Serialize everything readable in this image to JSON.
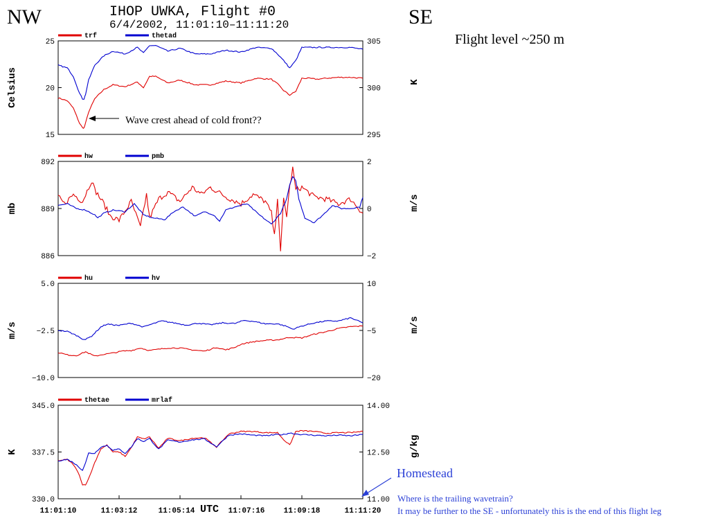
{
  "header": {
    "left_label": "NW",
    "right_label": "SE",
    "title_line1": "IHOP UWKA, Flight #0",
    "title_line2": "6/4/2002, 11:01:10–11:11:20",
    "flight_level": "Flight level ~250 m"
  },
  "annotations": {
    "wave_crest": "Wave crest ahead of cold front??",
    "homestead": "Homestead",
    "trailing_q": "Where is the trailing wavetrain?",
    "trailing_note": "It may be further to the SE - unfortunately this is the end of this flight leg"
  },
  "colors": {
    "red": "#e00000",
    "blue": "#0000d0",
    "note": "#2a3fd6"
  },
  "chart_data": [
    {
      "type": "line",
      "ylabel_left": "Celsius",
      "ylabel_right": "K",
      "left_ticks": [
        "25",
        "20",
        "15"
      ],
      "right_ticks": [
        "305",
        "300",
        "295"
      ],
      "ylim_left": [
        15,
        25
      ],
      "ylim_right": [
        295,
        305
      ],
      "series": [
        {
          "name": "trf",
          "color": "#e00000",
          "axis": "left",
          "x": [
            0,
            3,
            5,
            6,
            7,
            8,
            8.5,
            9,
            10,
            12,
            15,
            18,
            22,
            26,
            28,
            30,
            32,
            36,
            40,
            45,
            50,
            55,
            60,
            65,
            70,
            72,
            74,
            76,
            78,
            80,
            82,
            85,
            88,
            92,
            96,
            100
          ],
          "y": [
            18.9,
            18.6,
            17.8,
            17,
            16.2,
            15.7,
            15.7,
            16.2,
            17.4,
            18.8,
            19.8,
            20.3,
            20.1,
            20.6,
            20.0,
            21.2,
            21.2,
            20.5,
            20.8,
            20.3,
            20.3,
            20.7,
            20.5,
            21.0,
            20.9,
            20.4,
            19.7,
            19.2,
            19.6,
            21.0,
            21.0,
            20.9,
            21.0,
            21.1,
            21.1,
            21.0
          ]
        },
        {
          "name": "thetad",
          "color": "#0000d0",
          "axis": "right",
          "x": [
            0,
            3,
            5,
            6,
            7,
            8,
            8.5,
            9,
            10,
            12,
            15,
            18,
            22,
            26,
            28,
            30,
            32,
            36,
            40,
            45,
            50,
            55,
            60,
            65,
            70,
            72,
            74,
            76,
            78,
            80,
            82,
            85,
            88,
            92,
            96,
            100
          ],
          "y": [
            302.4,
            302.1,
            301.2,
            300.3,
            299.4,
            298.8,
            298.8,
            299.3,
            300.8,
            302.4,
            303.4,
            303.9,
            303.6,
            304.3,
            303.7,
            304.5,
            304.5,
            303.9,
            304.2,
            303.6,
            303.6,
            304.0,
            303.8,
            304.3,
            304.2,
            303.6,
            302.9,
            302.1,
            302.9,
            304.3,
            304.3,
            304.3,
            304.3,
            304.3,
            304.3,
            304.1
          ]
        }
      ]
    },
    {
      "type": "line",
      "ylabel_left": "mb",
      "ylabel_right": "m/s",
      "left_ticks": [
        "892",
        "889",
        "886"
      ],
      "right_ticks": [
        "2",
        "0",
        "−2"
      ],
      "ylim_left": [
        886,
        892
      ],
      "ylim_right": [
        -2,
        2
      ],
      "series": [
        {
          "name": "hw",
          "color": "#e00000",
          "axis": "right",
          "x": [
            0,
            2,
            5,
            8,
            11,
            12,
            15,
            17,
            20,
            24,
            27,
            29,
            30,
            33,
            36,
            40,
            44,
            47,
            50,
            55,
            60,
            64,
            68,
            70,
            71,
            72,
            73,
            74,
            75,
            76,
            77,
            78,
            80,
            84,
            88,
            92,
            96,
            100
          ],
          "y": [
            0.5,
            0.2,
            0.6,
            0.3,
            1.2,
            0.8,
            0.2,
            -0.3,
            -0.5,
            0.3,
            -0.8,
            0.6,
            -0.4,
            0.4,
            0.7,
            0.3,
            0.9,
            0.6,
            0.9,
            0.5,
            0.2,
            0.6,
            0.3,
            -0.2,
            -1.2,
            0.5,
            -1.9,
            0.4,
            -0.3,
            0.9,
            1.7,
            0.8,
            0.9,
            0.5,
            0.4,
            0.2,
            0.4,
            -0.2
          ]
        },
        {
          "name": "pmb",
          "color": "#0000d0",
          "axis": "left",
          "x": [
            0,
            3,
            6,
            9,
            12,
            13,
            15,
            18,
            22,
            25,
            28,
            31,
            35,
            38,
            41,
            45,
            48,
            51,
            53,
            55,
            58,
            62,
            66,
            70,
            73,
            75,
            76,
            77,
            78,
            79,
            81,
            84,
            87,
            90,
            93,
            96,
            99,
            100
          ],
          "y": [
            889.2,
            889.3,
            889.0,
            888.9,
            888.6,
            888.4,
            888.7,
            888.9,
            888.8,
            889.3,
            888.6,
            888.4,
            888.3,
            888.8,
            889.1,
            888.5,
            888.8,
            888.6,
            888.2,
            888.9,
            889.1,
            889.3,
            888.6,
            888.0,
            888.7,
            889.6,
            890.5,
            891.0,
            890.8,
            889.6,
            888.4,
            888.1,
            888.6,
            889.2,
            889.0,
            889.0,
            889.1,
            889.7
          ]
        }
      ]
    },
    {
      "type": "line",
      "ylabel_left": "m/s",
      "ylabel_right": "m/s",
      "left_ticks": [
        "5.0",
        "−2.5",
        "−10.0"
      ],
      "right_ticks": [
        "10",
        "−5",
        "−20"
      ],
      "ylim_left": [
        -10,
        5
      ],
      "ylim_right": [
        -20,
        10
      ],
      "series": [
        {
          "name": "hu",
          "color": "#e00000",
          "axis": "left",
          "x": [
            0,
            3,
            6,
            9,
            12,
            15,
            18,
            21,
            24,
            27,
            30,
            33,
            36,
            40,
            44,
            48,
            52,
            55,
            58,
            60,
            64,
            68,
            72,
            76,
            80,
            84,
            88,
            92,
            96,
            100
          ],
          "y": [
            -6.0,
            -6.4,
            -6.5,
            -5.9,
            -6.6,
            -6.3,
            -6.1,
            -5.8,
            -5.7,
            -5.3,
            -5.7,
            -5.5,
            -5.3,
            -5.3,
            -5.6,
            -5.8,
            -5.2,
            -5.6,
            -5.2,
            -4.7,
            -4.3,
            -4.1,
            -4.0,
            -3.6,
            -3.7,
            -3.1,
            -2.7,
            -2.2,
            -1.9,
            -1.8
          ]
        },
        {
          "name": "hv",
          "color": "#0000d0",
          "axis": "right",
          "x": [
            0,
            3,
            6,
            8,
            9,
            11,
            14,
            16,
            20,
            24,
            28,
            31,
            34,
            38,
            42,
            46,
            50,
            54,
            58,
            61,
            64,
            68,
            72,
            75,
            77,
            80,
            84,
            88,
            92,
            96,
            99,
            100
          ],
          "y": [
            -5.0,
            -5.3,
            -6.6,
            -7.7,
            -7.9,
            -6.8,
            -3.9,
            -3.0,
            -3.4,
            -2.7,
            -3.9,
            -2.9,
            -2.0,
            -2.6,
            -3.3,
            -2.7,
            -3.2,
            -2.6,
            -2.8,
            -1.8,
            -2.1,
            -2.9,
            -2.9,
            -3.7,
            -4.6,
            -3.6,
            -2.6,
            -2.0,
            -2.0,
            -1.0,
            -2.2,
            -2.6
          ]
        }
      ]
    },
    {
      "type": "line",
      "ylabel_left": "K",
      "ylabel_right": "g/kg",
      "left_ticks": [
        "345.0",
        "337.5",
        "330.0"
      ],
      "right_ticks": [
        "14.00",
        "12.50",
        "11.00"
      ],
      "ylim_left": [
        330,
        345
      ],
      "ylim_right": [
        11,
        14
      ],
      "series": [
        {
          "name": "thetae",
          "color": "#e00000",
          "axis": "left",
          "x": [
            0,
            3,
            5,
            7,
            8,
            9,
            10,
            12,
            14,
            16,
            18,
            20,
            22,
            24,
            26,
            28,
            30,
            33,
            36,
            40,
            44,
            48,
            52,
            56,
            60,
            64,
            68,
            72,
            74,
            76,
            78,
            80,
            84,
            88,
            92,
            96,
            100
          ],
          "y": [
            336.1,
            336.3,
            335.5,
            333.8,
            332.2,
            332.3,
            333.2,
            335.8,
            338.0,
            338.6,
            337.5,
            337.5,
            336.8,
            338.2,
            339.9,
            339.6,
            339.9,
            338.1,
            339.7,
            339.3,
            339.7,
            339.8,
            338.3,
            340.4,
            340.8,
            340.8,
            340.6,
            340.6,
            339.5,
            338.6,
            340.8,
            340.9,
            340.8,
            340.5,
            340.6,
            340.6,
            340.8
          ]
        },
        {
          "name": "mrlaf",
          "color": "#0000d0",
          "axis": "right",
          "x": [
            0,
            3,
            5,
            7,
            8,
            9,
            10,
            12,
            14,
            16,
            18,
            20,
            22,
            24,
            26,
            28,
            30,
            33,
            36,
            40,
            44,
            48,
            52,
            56,
            60,
            64,
            68,
            72,
            74,
            76,
            78,
            80,
            84,
            88,
            92,
            96,
            100
          ],
          "y": [
            12.22,
            12.26,
            12.16,
            12.0,
            11.92,
            12.16,
            12.46,
            12.46,
            12.66,
            12.71,
            12.56,
            12.59,
            12.46,
            12.66,
            12.93,
            12.84,
            12.93,
            12.59,
            12.88,
            12.82,
            12.89,
            12.92,
            12.67,
            13.04,
            13.08,
            13.04,
            13.02,
            13.06,
            13.06,
            13.11,
            13.08,
            13.06,
            13.04,
            13.02,
            13.04,
            13.02,
            13.06
          ]
        }
      ]
    }
  ],
  "x_axis": {
    "label": "UTC",
    "ticks": [
      "11:01:10",
      "11:03:12",
      "11:05:14",
      "11:07:16",
      "11:09:18",
      "11:11:20"
    ]
  }
}
